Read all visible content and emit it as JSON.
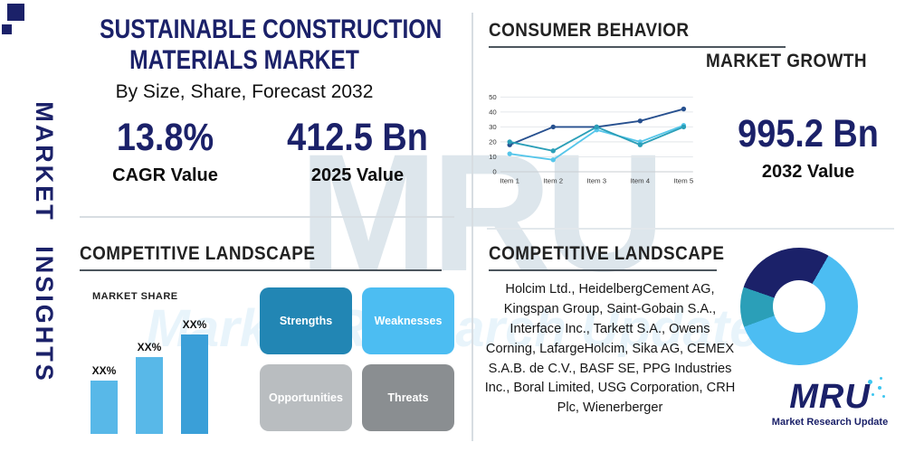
{
  "brand": {
    "logo_text": "MRU",
    "logo_caption": "Market Research Update"
  },
  "watermark": {
    "text": "MRU",
    "band_text": "Market Research Update"
  },
  "left_rail": {
    "vertical_label": "MARKET INSIGHTS"
  },
  "header": {
    "title_line1": "SUSTAINABLE CONSTRUCTION",
    "title_line2": "MATERIALS MARKET",
    "subtitle": "By Size, Share, Forecast 2032",
    "stats": [
      {
        "value": "13.8%",
        "label": "CAGR Value"
      },
      {
        "value": "412.5 Bn",
        "label": "2025 Value"
      }
    ]
  },
  "consumer_behavior": {
    "heading": "CONSUMER BEHAVIOR",
    "subheading": "MARKET GROWTH",
    "stat": {
      "value": "995.2 Bn",
      "label": "2032 Value"
    }
  },
  "competitive_left": {
    "heading": "COMPETITIVE LANDSCAPE",
    "market_share_label": "MARKET SHARE",
    "swot": [
      {
        "label": "Strengths",
        "color": "#2286b4"
      },
      {
        "label": "Weaknesses",
        "color": "#4cbdf2"
      },
      {
        "label": "Opportunities",
        "color": "#b9bdc0"
      },
      {
        "label": "Threats",
        "color": "#8a8e91"
      }
    ]
  },
  "competitive_right": {
    "heading": "COMPETITIVE LANDSCAPE",
    "companies": "Holcim Ltd., HeidelbergCement AG, Kingspan Group, Saint-Gobain S.A., Interface Inc., Tarkett S.A., Owens Corning, LafargeHolcim, Sika AG, CEMEX S.A.B. de C.V., BASF SE, PPG Industries Inc., Boral Limited, USG Corporation, CRH Plc, Wienerberger"
  },
  "chart_data": [
    {
      "id": "market-growth-line",
      "type": "line",
      "title": "MARKET GROWTH",
      "x": [
        "Item 1",
        "Item 2",
        "Item 3",
        "Item 4",
        "Item 5"
      ],
      "series": [
        {
          "name": "series-navy",
          "color": "#27508f",
          "values": [
            18,
            30,
            30,
            34,
            42
          ]
        },
        {
          "name": "series-cyan",
          "color": "#56c6ea",
          "values": [
            12,
            8,
            28,
            20,
            31
          ]
        },
        {
          "name": "series-teal",
          "color": "#2b9fb8",
          "values": [
            20,
            14,
            30,
            18,
            30
          ]
        }
      ],
      "ylim": [
        0,
        50
      ],
      "yticks": [
        0,
        10,
        20,
        30,
        40,
        50
      ],
      "grid": true,
      "legend": "none"
    },
    {
      "id": "market-share-bars",
      "type": "bar",
      "title": "MARKET SHARE",
      "bars": [
        {
          "label": "XX%",
          "value": 48,
          "color": "#58b8e8"
        },
        {
          "label": "XX%",
          "value": 70,
          "color": "#58b8e8"
        },
        {
          "label": "XX%",
          "value": 90,
          "color": "#3a9fd8"
        }
      ],
      "ylim": [
        0,
        100
      ]
    },
    {
      "id": "company-share-donut",
      "type": "pie",
      "donut": true,
      "start_angle_deg": 30,
      "slices": [
        {
          "name": "slice-light-blue",
          "value": 61,
          "color": "#4cbdf2"
        },
        {
          "name": "slice-teal",
          "value": 11,
          "color": "#2b9fb8"
        },
        {
          "name": "slice-navy",
          "value": 28,
          "color": "#1b2169"
        }
      ]
    }
  ],
  "colors": {
    "navy": "#1b2169",
    "light_blue": "#4cbdf2",
    "teal": "#2b9fb8",
    "heading": "#222222",
    "divider": "#d7dde2",
    "rule": "#4d565e"
  }
}
